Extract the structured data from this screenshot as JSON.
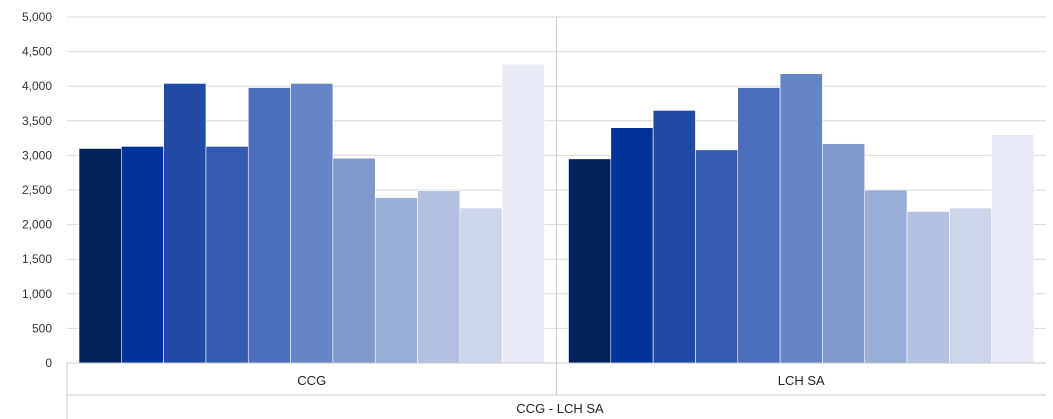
{
  "chart_data": {
    "type": "bar",
    "categories": [
      "CCG",
      "LCH SA"
    ],
    "group_label": "CCG - LCH SA",
    "ylim": [
      0,
      5000
    ],
    "yticks": [
      "0",
      "500",
      "1,000",
      "1,500",
      "2,000",
      "2,500",
      "3,000",
      "3,500",
      "4,000",
      "4,500",
      "5,000"
    ],
    "grid": true,
    "legend": "none",
    "colors": [
      "#00235a",
      "#003399",
      "#1f4aa6",
      "#335bb0",
      "#4d6fbb",
      "#6685c5",
      "#8099cd",
      "#99aed7",
      "#b3c2e0",
      "#ccd5ea",
      "#e6eaf5"
    ],
    "series": [
      {
        "values": [
          3100,
          2950
        ]
      },
      {
        "values": [
          3130,
          3400
        ]
      },
      {
        "values": [
          4040,
          3650
        ]
      },
      {
        "values": [
          3130,
          3080
        ]
      },
      {
        "values": [
          3980,
          3980
        ]
      },
      {
        "values": [
          4040,
          4180
        ]
      },
      {
        "values": [
          2960,
          3170
        ]
      },
      {
        "values": [
          2390,
          2500
        ]
      },
      {
        "values": [
          2490,
          2190
        ]
      },
      {
        "values": [
          2240,
          2240
        ]
      },
      {
        "values": [
          4320,
          3300
        ]
      }
    ]
  }
}
